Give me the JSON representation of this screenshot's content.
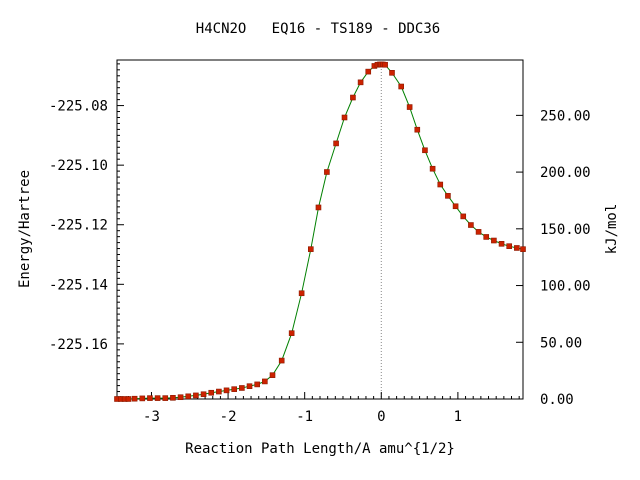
{
  "chart_data": {
    "type": "line",
    "title": "H4CN2O   EQ16 - TS189 - DDC36",
    "xlabel": "Reaction Path Length/A amu^{1/2}",
    "ylabel": "Energy/Hartree",
    "y2label": "kJ/mol",
    "xlim": [
      -3.45,
      1.85
    ],
    "ylim": [
      -225.1785,
      -225.0647
    ],
    "y2lim": [
      0.0,
      298.8
    ],
    "x_ticks": [
      -3,
      -2,
      -1,
      0,
      1
    ],
    "x_tick_labels": [
      "-3",
      "-2",
      "-1",
      "0",
      "1"
    ],
    "y_ticks": [
      -225.08,
      -225.1,
      -225.12,
      -225.14,
      -225.16
    ],
    "y_tick_labels": [
      "-225.08",
      "-225.10",
      "-225.12",
      "-225.14",
      "-225.16"
    ],
    "y2_ticks": [
      0,
      50,
      100,
      150,
      200,
      250
    ],
    "y2_tick_labels": [
      "0.00",
      "50.00",
      "100.00",
      "150.00",
      "200.00",
      "250.00"
    ],
    "ts_marker_x": 0.0,
    "grid": false,
    "colors": {
      "line": "#008000",
      "marker_fill": "#cc2200",
      "marker_edge": "#8b1a00",
      "ts_line": "#888888"
    },
    "series": [
      {
        "x": [
          -3.45,
          -3.4,
          -3.35,
          -3.3,
          -3.22,
          -3.12,
          -3.02,
          -2.92,
          -2.82,
          -2.72,
          -2.62,
          -2.52,
          -2.42,
          -2.32,
          -2.22,
          -2.12,
          -2.02,
          -1.92,
          -1.82,
          -1.72,
          -1.62,
          -1.52,
          -1.42,
          -1.3,
          -1.17,
          -1.04,
          -0.92,
          -0.82,
          -0.71,
          -0.59,
          -0.48,
          -0.37,
          -0.27,
          -0.17,
          -0.09,
          -0.05,
          -0.02,
          0.0,
          0.02,
          0.05,
          0.14,
          0.26,
          0.37,
          0.47,
          0.57,
          0.67,
          0.77,
          0.87,
          0.97,
          1.07,
          1.17,
          1.27,
          1.37,
          1.47,
          1.57,
          1.67,
          1.77,
          1.85
        ],
        "y": [
          -225.1785,
          -225.1785,
          -225.1785,
          -225.1785,
          -225.1784,
          -225.1783,
          -225.1782,
          -225.1782,
          -225.1782,
          -225.1781,
          -225.1779,
          -225.1776,
          -225.1773,
          -225.1769,
          -225.1764,
          -225.176,
          -225.1756,
          -225.1752,
          -225.1748,
          -225.1742,
          -225.1736,
          -225.1726,
          -225.1705,
          -225.1656,
          -225.1564,
          -225.143,
          -225.1282,
          -225.1142,
          -225.1023,
          -225.0927,
          -225.084,
          -225.0773,
          -225.0722,
          -225.0686,
          -225.0667,
          -225.0663,
          -225.0662,
          -225.0662,
          -225.0662,
          -225.0663,
          -225.069,
          -225.0736,
          -225.0805,
          -225.0881,
          -225.095,
          -225.1012,
          -225.1065,
          -225.1103,
          -225.1138,
          -225.1172,
          -225.1201,
          -225.1224,
          -225.1241,
          -225.1253,
          -225.1264,
          -225.1272,
          -225.1278,
          -225.1282
        ]
      }
    ]
  }
}
